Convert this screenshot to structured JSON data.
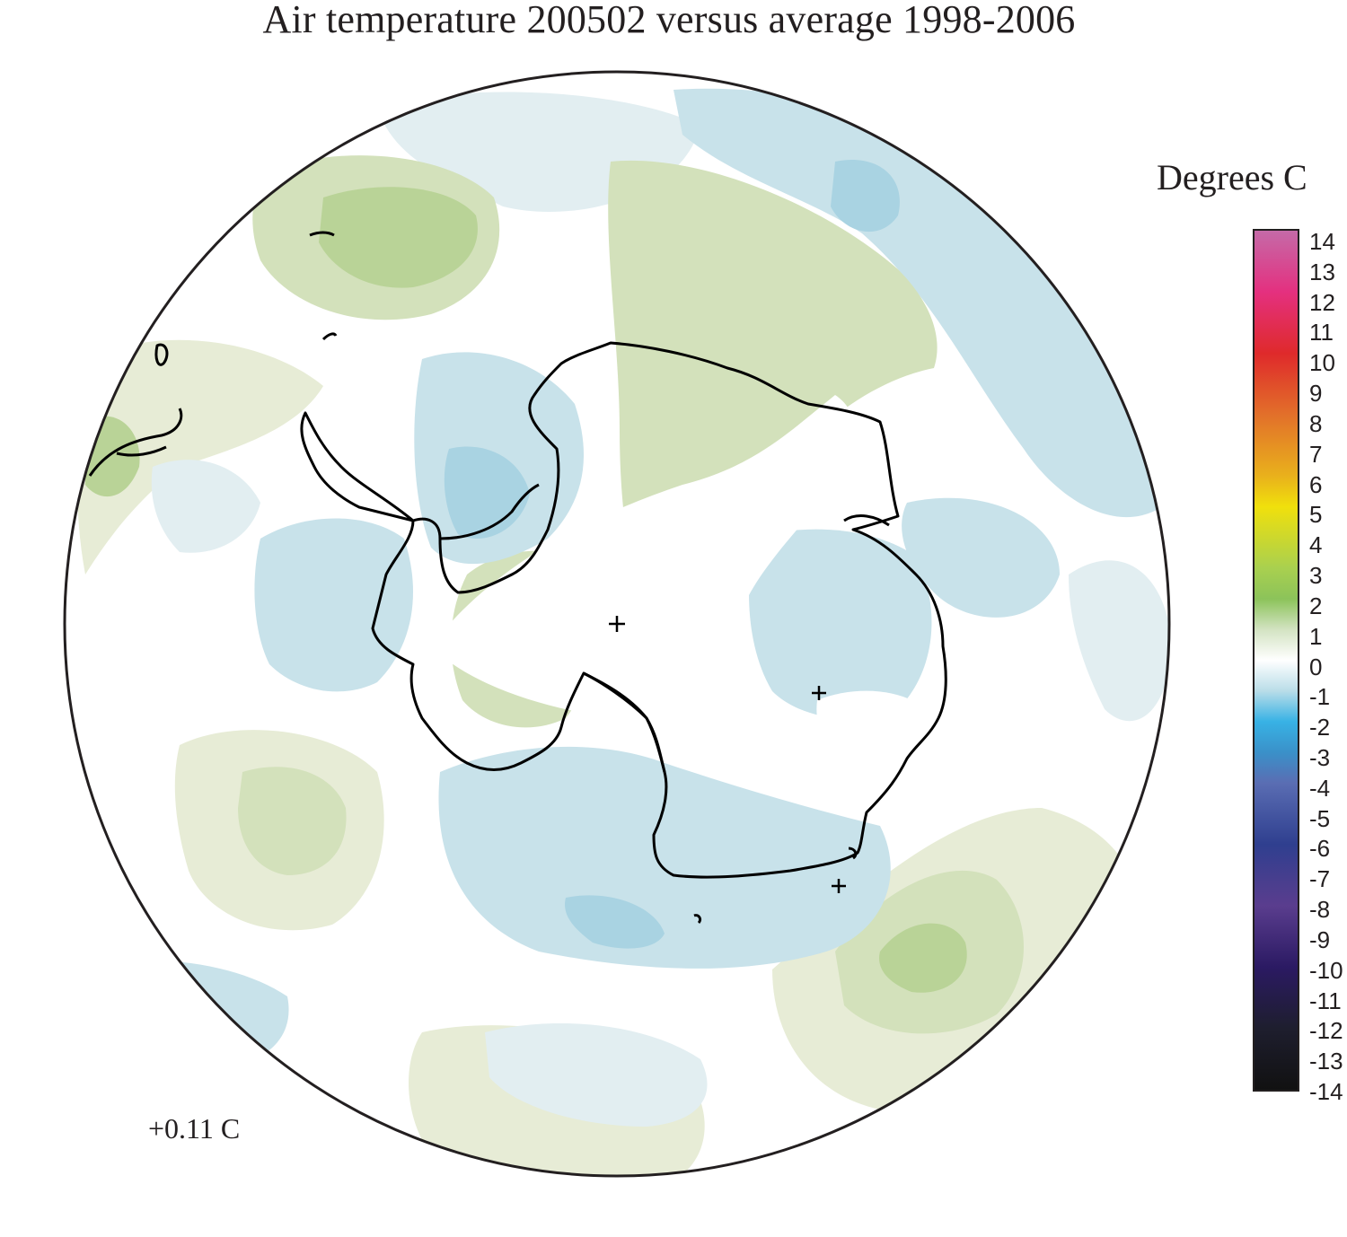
{
  "title": "Air temperature 200502 versus average 1998-2006",
  "legend": {
    "title": "Degrees C",
    "ticks": [
      "14",
      "13",
      "12",
      "11",
      "10",
      "9",
      "8",
      "7",
      "6",
      "5",
      "4",
      "3",
      "2",
      "1",
      "0",
      "-1",
      "-2",
      "-3",
      "-4",
      "-5",
      "-6",
      "-7",
      "-8",
      "-9",
      "-10",
      "-11",
      "-12",
      "-13",
      "-14"
    ],
    "colors": {
      "14": "#c56aa8",
      "12": "#e4307f",
      "10": "#df2a2b",
      "8": "#e2702a",
      "6": "#e9b11c",
      "5": "#f0e00c",
      "3": "#a9d04f",
      "2": "#8cc35a",
      "1": "#d3e3c2",
      "0": "#ffffff",
      "-1": "#b9dde8",
      "-2": "#38b2e5",
      "-3": "#3a91c9",
      "-4": "#5a6db3",
      "-6": "#2f3f8f",
      "-8": "#5a3d8e",
      "-10": "#2b1a63",
      "-12": "#1e1e2e",
      "-14": "#111111"
    }
  },
  "mean_anomaly": "+0.11 C",
  "map": {
    "projection": "south polar stereographic",
    "anomaly_colors": {
      "light_green": "#e7ecd6",
      "green": "#d3e1bb",
      "dark_green": "#b9d397",
      "light_blue": "#e2eef1",
      "blue": "#c8e2ea",
      "dark_blue": "#a9d3e2",
      "coastline": "#000000",
      "frame": "#231f20"
    }
  }
}
